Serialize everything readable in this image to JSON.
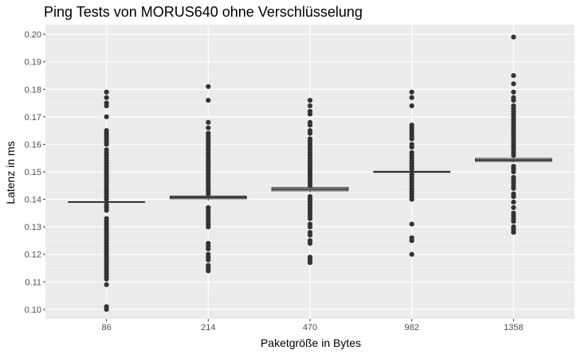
{
  "chart_data": {
    "type": "boxplot",
    "title": "Ping Tests von MORUS640 ohne Verschlüsselung",
    "xlabel": "Paketgröße in Bytes",
    "ylabel": "Latenz in ms",
    "categories": [
      "86",
      "214",
      "470",
      "982",
      "1358"
    ],
    "yticks": [
      "0.10",
      "0.11",
      "0.12",
      "0.13",
      "0.14",
      "0.15",
      "0.16",
      "0.17",
      "0.18",
      "0.19",
      "0.20"
    ],
    "ylim": [
      0.0965,
      0.2035
    ],
    "grid": true,
    "background": "#ebebeb",
    "boxes": [
      {
        "category": "86",
        "lower": 0.1388,
        "q1": 0.1389,
        "median": 0.139,
        "q3": 0.1391,
        "upper": 0.1392,
        "outliers": [
          0.179,
          0.177,
          0.175,
          0.174,
          0.17,
          0.165,
          0.164,
          0.163,
          0.162,
          0.161,
          0.16,
          0.158,
          0.157,
          0.156,
          0.155,
          0.154,
          0.153,
          0.152,
          0.151,
          0.15,
          0.149,
          0.148,
          0.147,
          0.146,
          0.145,
          0.144,
          0.143,
          0.142,
          0.141,
          0.14,
          0.138,
          0.137,
          0.136,
          0.133,
          0.132,
          0.131,
          0.13,
          0.129,
          0.128,
          0.127,
          0.126,
          0.125,
          0.124,
          0.123,
          0.122,
          0.121,
          0.12,
          0.119,
          0.118,
          0.117,
          0.116,
          0.115,
          0.114,
          0.113,
          0.112,
          0.111,
          0.109,
          0.101,
          0.1
        ]
      },
      {
        "category": "214",
        "lower": 0.1395,
        "q1": 0.1402,
        "median": 0.1407,
        "q3": 0.1412,
        "upper": 0.1418,
        "outliers": [
          0.181,
          0.176,
          0.168,
          0.166,
          0.164,
          0.163,
          0.162,
          0.161,
          0.16,
          0.159,
          0.158,
          0.157,
          0.156,
          0.155,
          0.154,
          0.153,
          0.152,
          0.151,
          0.15,
          0.149,
          0.148,
          0.147,
          0.146,
          0.145,
          0.144,
          0.143,
          0.142,
          0.137,
          0.136,
          0.135,
          0.134,
          0.133,
          0.132,
          0.131,
          0.13,
          0.124,
          0.123,
          0.122,
          0.12,
          0.119,
          0.118,
          0.116,
          0.115,
          0.114
        ]
      },
      {
        "category": "470",
        "lower": 0.1425,
        "q1": 0.1431,
        "median": 0.1437,
        "q3": 0.1443,
        "upper": 0.1448,
        "outliers": [
          0.176,
          0.174,
          0.172,
          0.171,
          0.168,
          0.167,
          0.165,
          0.164,
          0.162,
          0.161,
          0.16,
          0.159,
          0.158,
          0.157,
          0.156,
          0.155,
          0.154,
          0.153,
          0.152,
          0.151,
          0.15,
          0.149,
          0.148,
          0.147,
          0.146,
          0.145,
          0.141,
          0.14,
          0.139,
          0.138,
          0.137,
          0.136,
          0.135,
          0.134,
          0.133,
          0.131,
          0.13,
          0.128,
          0.127,
          0.125,
          0.124,
          0.119,
          0.118,
          0.117
        ]
      },
      {
        "category": "982",
        "lower": 0.1496,
        "q1": 0.1498,
        "median": 0.15,
        "q3": 0.1502,
        "upper": 0.1504,
        "outliers": [
          0.179,
          0.177,
          0.174,
          0.167,
          0.166,
          0.165,
          0.164,
          0.163,
          0.162,
          0.16,
          0.159,
          0.157,
          0.156,
          0.155,
          0.154,
          0.153,
          0.152,
          0.151,
          0.149,
          0.148,
          0.147,
          0.146,
          0.145,
          0.144,
          0.143,
          0.142,
          0.141,
          0.14,
          0.131,
          0.126,
          0.125,
          0.12
        ]
      },
      {
        "category": "1358",
        "lower": 0.1535,
        "q1": 0.1538,
        "median": 0.1543,
        "q3": 0.1549,
        "upper": 0.1553,
        "outliers": [
          0.199,
          0.185,
          0.182,
          0.179,
          0.177,
          0.176,
          0.174,
          0.173,
          0.172,
          0.171,
          0.17,
          0.169,
          0.168,
          0.167,
          0.166,
          0.165,
          0.164,
          0.163,
          0.162,
          0.161,
          0.16,
          0.159,
          0.158,
          0.157,
          0.156,
          0.152,
          0.151,
          0.15,
          0.148,
          0.147,
          0.146,
          0.145,
          0.144,
          0.142,
          0.141,
          0.139,
          0.137,
          0.135,
          0.134,
          0.133,
          0.132,
          0.13,
          0.129,
          0.128
        ]
      }
    ]
  }
}
